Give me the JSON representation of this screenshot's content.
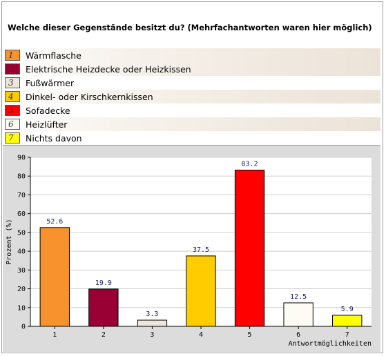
{
  "question": "Welche dieser Gegenstände besitzt du? (Mehrfachantworten waren hier möglich)",
  "legend": [
    {
      "num": "1",
      "label": "Wärmflasche",
      "color": "#f7922c"
    },
    {
      "num": "2",
      "label": "Elektrische Heizdecke oder Heizkissen",
      "color": "#990033"
    },
    {
      "num": "3",
      "label": "Fußwärmer",
      "color": "#eee6dc"
    },
    {
      "num": "4",
      "label": "Dinkel- oder Kirschkernkissen",
      "color": "#ffcc00"
    },
    {
      "num": "5",
      "label": "Sofadecke",
      "color": "#ff0000"
    },
    {
      "num": "6",
      "label": "Heizlüfter",
      "color": "#fcfcf4"
    },
    {
      "num": "7",
      "label": "Nichts davon",
      "color": "#ffff00"
    }
  ],
  "chart_data": {
    "type": "bar",
    "categories": [
      "1",
      "2",
      "3",
      "4",
      "5",
      "6",
      "7"
    ],
    "values": [
      52.6,
      19.9,
      3.3,
      37.5,
      83.2,
      12.5,
      5.9
    ],
    "value_labels": [
      "52.6",
      "19.9",
      "3.3",
      "37.5",
      "83.2",
      "12.5",
      "5.9"
    ],
    "colors": [
      "#f7922c",
      "#990033",
      "#eee6dc",
      "#ffcc00",
      "#ff0000",
      "#fcfcf4",
      "#ffff00"
    ],
    "ylabel": "Prozent (%)",
    "xlabel": "Antwortmöglichkeiten",
    "ylim": [
      0,
      90
    ],
    "yticks": [
      "0",
      "10",
      "20",
      "30",
      "40",
      "50",
      "60",
      "70",
      "80",
      "90"
    ],
    "grid": true
  }
}
